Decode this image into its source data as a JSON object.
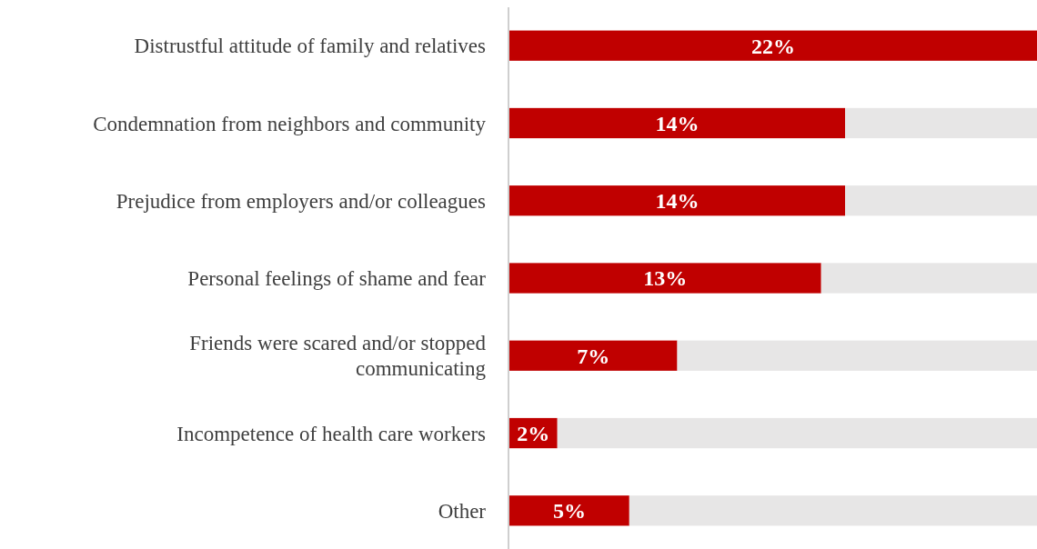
{
  "chart_data": {
    "type": "bar",
    "orientation": "horizontal",
    "stacked": true,
    "categories": [
      "Distrustful attitude of family and relatives",
      "Condemnation from neighbors and community",
      "Prejudice from employers and/or colleagues",
      "Personal feelings of shame and fear",
      "Friends were scared and/or stopped communicating",
      "Incompetence of health care workers",
      "Other"
    ],
    "series": [
      {
        "color": "#c00000",
        "values": [
          22,
          14,
          14,
          13,
          7,
          2,
          5
        ],
        "value_labels": [
          "22%",
          "14%",
          "14%",
          "13%",
          "7%",
          "2%",
          "5%"
        ]
      },
      {
        "color": "#e7e6e6",
        "values": [
          0,
          8,
          8,
          9,
          15,
          20,
          17
        ]
      }
    ],
    "xlim": [
      0,
      22
    ]
  }
}
